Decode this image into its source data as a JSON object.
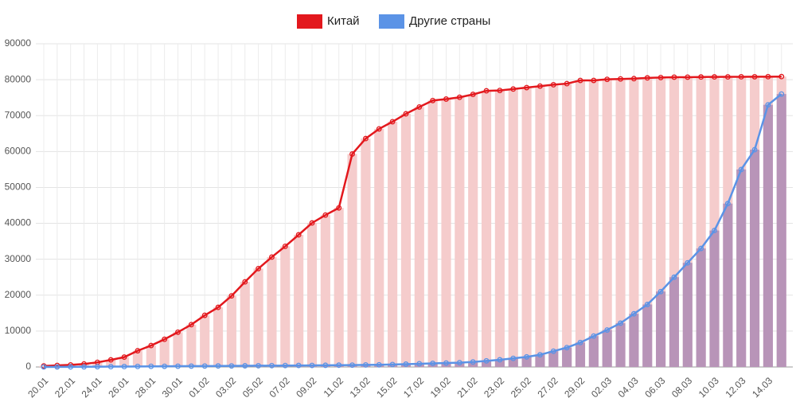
{
  "chart_data": {
    "type": "bar-line",
    "categories": [
      "20.01",
      null,
      "22.01",
      null,
      "24.01",
      null,
      "26.01",
      null,
      "28.01",
      null,
      "30.01",
      null,
      "01.02",
      null,
      "03.02",
      null,
      "05.02",
      null,
      "07.02",
      null,
      "09.02",
      null,
      "11.02",
      null,
      "13.02",
      null,
      "15.02",
      null,
      "17.02",
      null,
      "19.02",
      null,
      "21.02",
      null,
      "23.02",
      null,
      "25.02",
      null,
      "27.02",
      null,
      "29.02",
      null,
      "02.03",
      null,
      "04.03",
      null,
      "06.03",
      null,
      "08.03",
      null,
      "10.03",
      null,
      "12.03",
      null,
      "14.03",
      null
    ],
    "series": [
      {
        "name": "Китай",
        "color": "#e3181d",
        "bar_color": "#f5cccc",
        "values": [
          291,
          440,
          571,
          830,
          1287,
          1975,
          2744,
          4515,
          5974,
          7711,
          9692,
          11791,
          14380,
          16600,
          19800,
          23700,
          27400,
          30600,
          33600,
          36800,
          40100,
          42300,
          44300,
          59300,
          63600,
          66300,
          68300,
          70500,
          72400,
          74200,
          74600,
          75100,
          75900,
          76900,
          77000,
          77400,
          77800,
          78200,
          78600,
          78900,
          79800,
          79800,
          80100,
          80200,
          80300,
          80500,
          80600,
          80700,
          80700,
          80750,
          80780,
          80790,
          80810,
          80820,
          80840,
          80860
        ]
      },
      {
        "name": "Другие страны",
        "color": "#5b93e6",
        "bar_color": "rgba(110,80,160,0.45)",
        "values": [
          10,
          20,
          30,
          50,
          80,
          100,
          120,
          150,
          180,
          190,
          210,
          240,
          260,
          280,
          300,
          330,
          350,
          370,
          400,
          420,
          440,
          470,
          500,
          520,
          570,
          600,
          680,
          780,
          900,
          1000,
          1100,
          1200,
          1400,
          1700,
          2000,
          2400,
          2800,
          3400,
          4400,
          5400,
          6800,
          8600,
          10300,
          12200,
          14800,
          17400,
          21000,
          25000,
          29000,
          33000,
          38000,
          45500,
          55000,
          60500,
          73000,
          76000
        ]
      }
    ],
    "ylim": [
      0,
      90000
    ],
    "yticks": [
      0,
      10000,
      20000,
      30000,
      40000,
      50000,
      60000,
      70000,
      80000,
      90000
    ],
    "grid": true
  }
}
